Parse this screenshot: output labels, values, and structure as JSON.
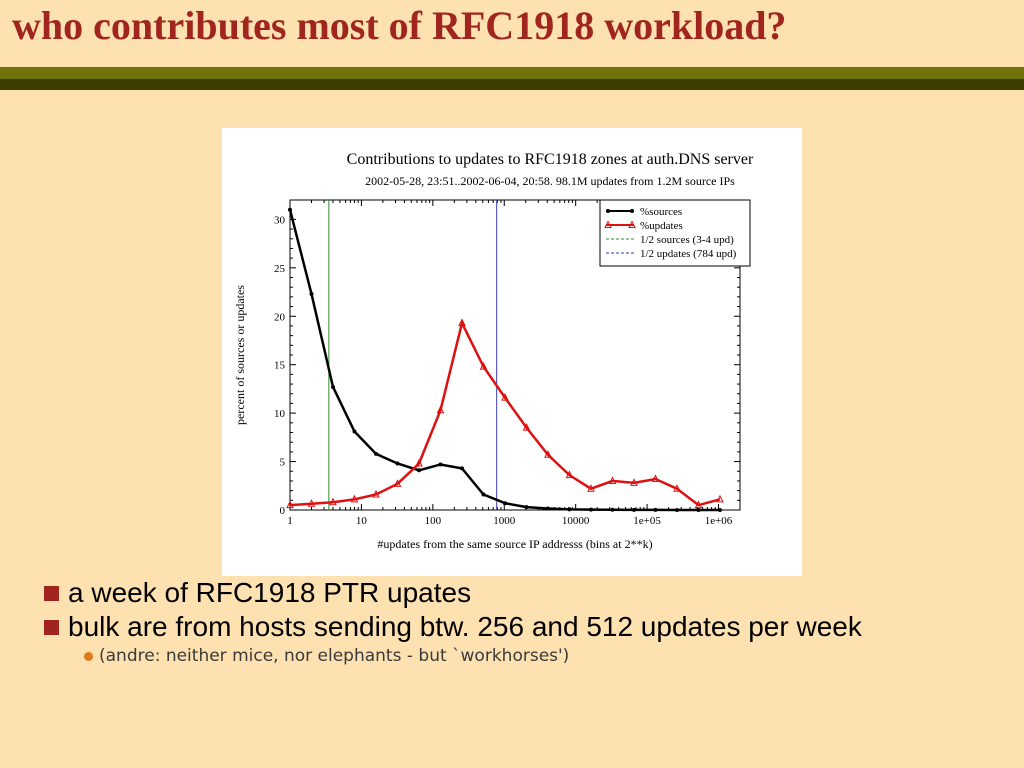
{
  "slide": {
    "title": "who contributes most of RFC1918 workload?",
    "bullets": [
      "a week of RFC1918 PTR upates",
      "bulk are from hosts sending btw. 256 and 512 updates per week"
    ],
    "sub_bullet": "(andre: neither mice, nor elephants - but `workhorses')"
  },
  "colors": {
    "title": "#a0251e",
    "bar_top": "#6f7309",
    "bar_bottom": "#3c3e00",
    "background": "#fde1b0",
    "sources": "#000000",
    "updates": "#dd1111",
    "half_sources_line": "#2e8b2e",
    "half_updates_line": "#3a3aaa"
  },
  "chart_data": {
    "type": "line",
    "title": "Contributions to updates to RFC1918 zones at auth.DNS server",
    "subtitle": "2002-05-28, 23:51..2002-06-04, 20:58. 98.1M updates from 1.2M source IPs",
    "xlabel": "#updates from the same source IP addresss (bins at 2**k)",
    "ylabel": "percent of sources or updates",
    "x_scale": "log",
    "xlim": [
      1,
      2000000
    ],
    "ylim": [
      0,
      32
    ],
    "x_ticks": [
      1,
      10,
      100,
      1000,
      10000,
      100000,
      1000000
    ],
    "x_tick_labels": [
      "1",
      "10",
      "100",
      "1000",
      "10000",
      "1e+05",
      "1e+06"
    ],
    "y_ticks": [
      0,
      5,
      10,
      15,
      20,
      25,
      30
    ],
    "y_tick_labels": [
      "0",
      "5",
      "10",
      "15",
      "20",
      "25",
      "30"
    ],
    "legend_position": "top-right",
    "x": [
      1,
      2,
      4,
      8,
      16,
      32,
      64,
      128,
      256,
      512,
      1024,
      2048,
      4096,
      8192,
      16384,
      32768,
      65536,
      131072,
      262144,
      524288,
      1048576
    ],
    "series": [
      {
        "name": "%sources",
        "marker": "circle",
        "values": [
          31,
          22.3,
          12.7,
          8.1,
          5.8,
          4.8,
          4.1,
          4.7,
          4.3,
          1.6,
          0.7,
          0.3,
          0.15,
          0.07,
          0.04,
          0.02,
          0.01,
          0.01,
          0.0,
          0.0,
          0.0
        ]
      },
      {
        "name": "%updates",
        "marker": "triangle",
        "values": [
          0.5,
          0.65,
          0.8,
          1.1,
          1.6,
          2.7,
          4.8,
          10.3,
          19.3,
          14.8,
          11.6,
          8.5,
          5.7,
          3.6,
          2.2,
          3.0,
          2.8,
          3.2,
          2.2,
          0.5,
          1.1
        ]
      }
    ],
    "reference_lines": [
      {
        "name": "1/2 sources (3-4 upd)",
        "x": 3.5
      },
      {
        "name": "1/2 updates (784 upd)",
        "x": 784
      }
    ]
  }
}
